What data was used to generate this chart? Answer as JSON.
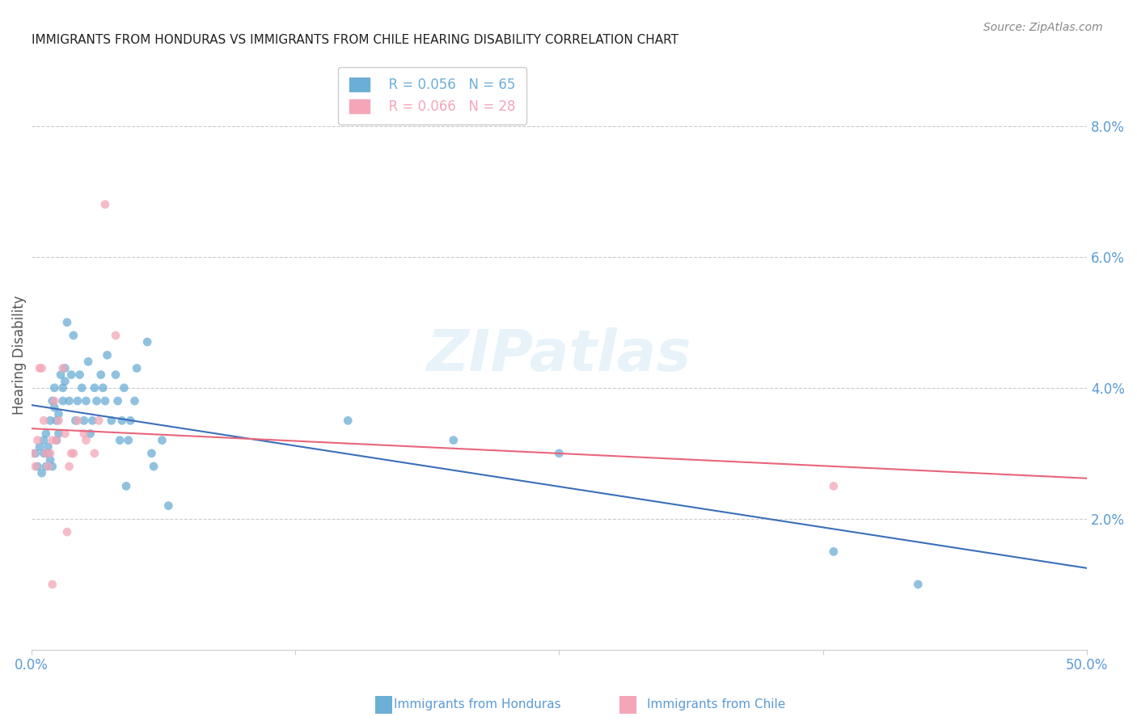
{
  "title": "IMMIGRANTS FROM HONDURAS VS IMMIGRANTS FROM CHILE HEARING DISABILITY CORRELATION CHART",
  "source": "Source: ZipAtlas.com",
  "ylabel": "Hearing Disability",
  "yticks": [
    0.0,
    0.02,
    0.04,
    0.06,
    0.08
  ],
  "ytick_labels": [
    "",
    "2.0%",
    "4.0%",
    "6.0%",
    "8.0%"
  ],
  "xlim": [
    0.0,
    0.5
  ],
  "ylim": [
    0.0,
    0.09
  ],
  "watermark": "ZIPatlas",
  "legend_honduras_R": "R = 0.056",
  "legend_honduras_N": "N = 65",
  "legend_chile_R": "R = 0.066",
  "legend_chile_N": "N = 28",
  "color_honduras": "#6baed6",
  "color_chile": "#f4a6b8",
  "line_honduras": "#3a6fba",
  "line_chile": "#e8657a",
  "title_color": "#222222",
  "tick_color": "#5b9bd5",
  "grid_color": "#cccccc",
  "scatter_alpha": 0.75,
  "scatter_size": 60,
  "honduras_x": [
    0.002,
    0.003,
    0.004,
    0.005,
    0.006,
    0.006,
    0.007,
    0.007,
    0.008,
    0.008,
    0.009,
    0.009,
    0.01,
    0.01,
    0.011,
    0.011,
    0.012,
    0.012,
    0.013,
    0.013,
    0.014,
    0.015,
    0.015,
    0.016,
    0.016,
    0.017,
    0.018,
    0.019,
    0.02,
    0.021,
    0.022,
    0.023,
    0.024,
    0.025,
    0.026,
    0.027,
    0.028,
    0.029,
    0.03,
    0.031,
    0.033,
    0.034,
    0.035,
    0.036,
    0.038,
    0.04,
    0.041,
    0.042,
    0.043,
    0.044,
    0.045,
    0.046,
    0.047,
    0.049,
    0.05,
    0.055,
    0.057,
    0.058,
    0.062,
    0.065,
    0.15,
    0.2,
    0.25,
    0.38,
    0.42
  ],
  "honduras_y": [
    0.03,
    0.028,
    0.031,
    0.027,
    0.03,
    0.032,
    0.028,
    0.033,
    0.03,
    0.031,
    0.029,
    0.035,
    0.038,
    0.028,
    0.04,
    0.037,
    0.032,
    0.035,
    0.036,
    0.033,
    0.042,
    0.038,
    0.04,
    0.041,
    0.043,
    0.05,
    0.038,
    0.042,
    0.048,
    0.035,
    0.038,
    0.042,
    0.04,
    0.035,
    0.038,
    0.044,
    0.033,
    0.035,
    0.04,
    0.038,
    0.042,
    0.04,
    0.038,
    0.045,
    0.035,
    0.042,
    0.038,
    0.032,
    0.035,
    0.04,
    0.025,
    0.032,
    0.035,
    0.038,
    0.043,
    0.047,
    0.03,
    0.028,
    0.032,
    0.022,
    0.035,
    0.032,
    0.03,
    0.015,
    0.01
  ],
  "chile_x": [
    0.001,
    0.002,
    0.003,
    0.004,
    0.005,
    0.006,
    0.007,
    0.008,
    0.009,
    0.01,
    0.011,
    0.012,
    0.013,
    0.015,
    0.016,
    0.017,
    0.018,
    0.019,
    0.02,
    0.022,
    0.025,
    0.026,
    0.03,
    0.032,
    0.035,
    0.04,
    0.38,
    0.01
  ],
  "chile_y": [
    0.03,
    0.028,
    0.032,
    0.043,
    0.043,
    0.035,
    0.03,
    0.028,
    0.03,
    0.032,
    0.038,
    0.032,
    0.035,
    0.043,
    0.033,
    0.018,
    0.028,
    0.03,
    0.03,
    0.035,
    0.033,
    0.032,
    0.03,
    0.035,
    0.068,
    0.048,
    0.025,
    0.01
  ]
}
